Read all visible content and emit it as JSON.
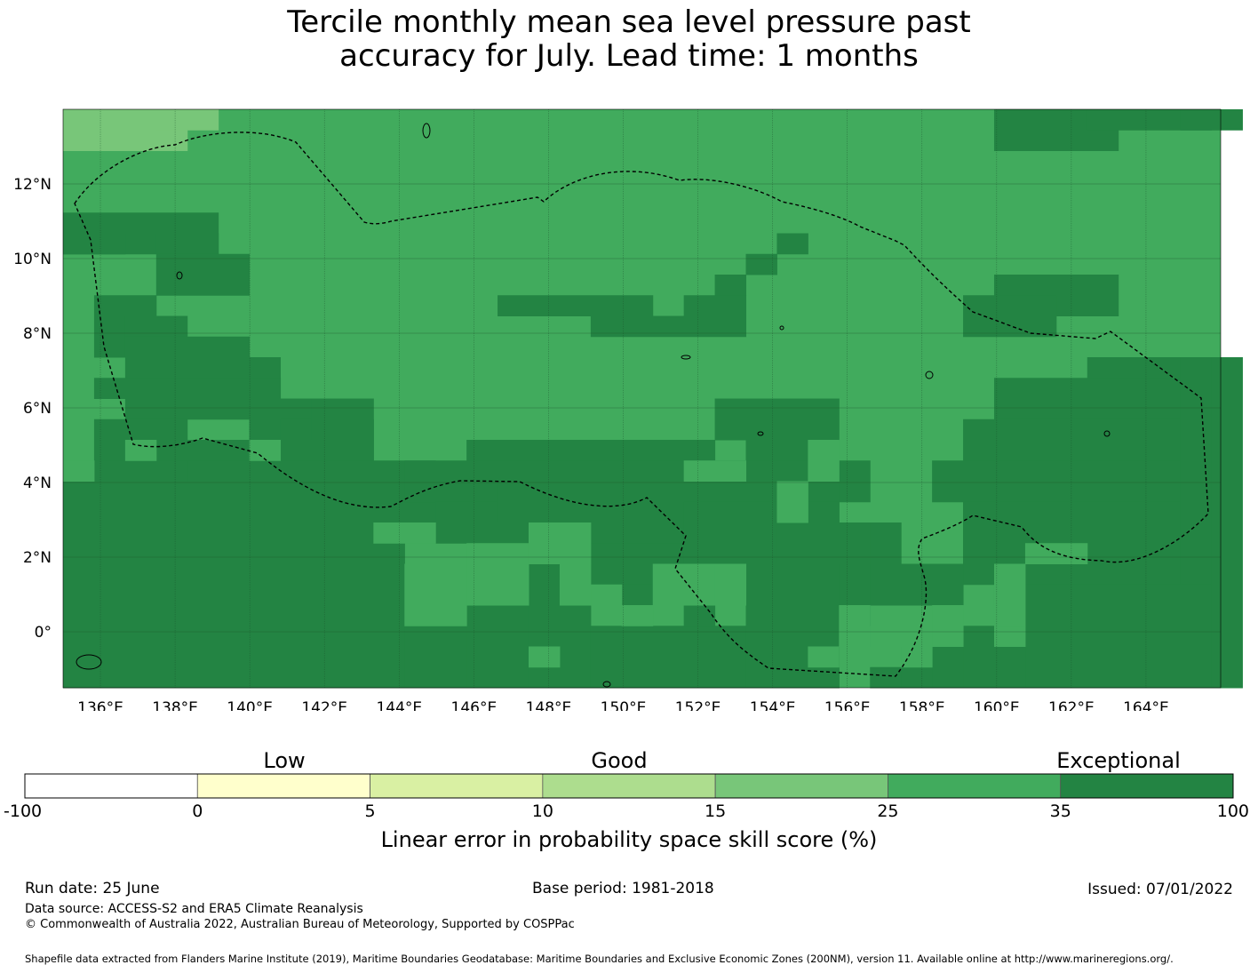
{
  "title": {
    "line1": "Tercile monthly mean sea level pressure past",
    "line2": "accuracy for July. Lead time: 1 months"
  },
  "map": {
    "lon_labels": [
      "136°E",
      "138°E",
      "140°E",
      "142°E",
      "144°E",
      "146°E",
      "148°E",
      "150°E",
      "152°E",
      "154°E",
      "156°E",
      "158°E",
      "160°E",
      "162°E",
      "164°E"
    ],
    "lon_values": [
      136,
      138,
      140,
      142,
      144,
      146,
      148,
      150,
      152,
      154,
      156,
      158,
      160,
      162,
      164
    ],
    "lat_labels": [
      "12°N",
      "10°N",
      "8°N",
      "6°N",
      "4°N",
      "2°N",
      "0°"
    ],
    "lat_values": [
      12,
      10,
      8,
      6,
      4,
      2,
      0
    ],
    "extent": {
      "lon_min": 135,
      "lon_max": 166,
      "lat_min": -1.5,
      "lat_max": 14
    },
    "background_category": 5,
    "category_colors": [
      "#ffffff",
      "#ffffcc",
      "#d9f0a3",
      "#addd8e",
      "#78c679",
      "#41ab5d",
      "#238443"
    ]
  },
  "colorbar": {
    "category_labels": [
      "Low",
      "Good",
      "Exceptional"
    ],
    "tick_labels": [
      "-100",
      "0",
      "5",
      "10",
      "15",
      "25",
      "35",
      "100"
    ],
    "colors": [
      "#ffffff",
      "#ffffcc",
      "#d9f0a3",
      "#addd8e",
      "#78c679",
      "#41ab5d",
      "#238443"
    ],
    "label": "Linear error in probability space skill score (%)"
  },
  "footer": {
    "run_date": "Run date: 25 June",
    "base_period": "Base period: 1981-2018",
    "issued": "Issued: 07/01/2022",
    "data_source": "Data source: ACCESS-S2 and ERA5 Climate Reanalysis",
    "copyright": "© Commonwealth of Australia 2022, Australian Bureau of Meteorology, Supported by COSPPac",
    "shapefile": "Shapefile data extracted from Flanders Marine Institute (2019), Maritime Boundaries Geodatabase: Maritime Boundaries and Exclusive Economic Zones (200NM), version 11. Available online at http://www.marineregions.org/."
  }
}
